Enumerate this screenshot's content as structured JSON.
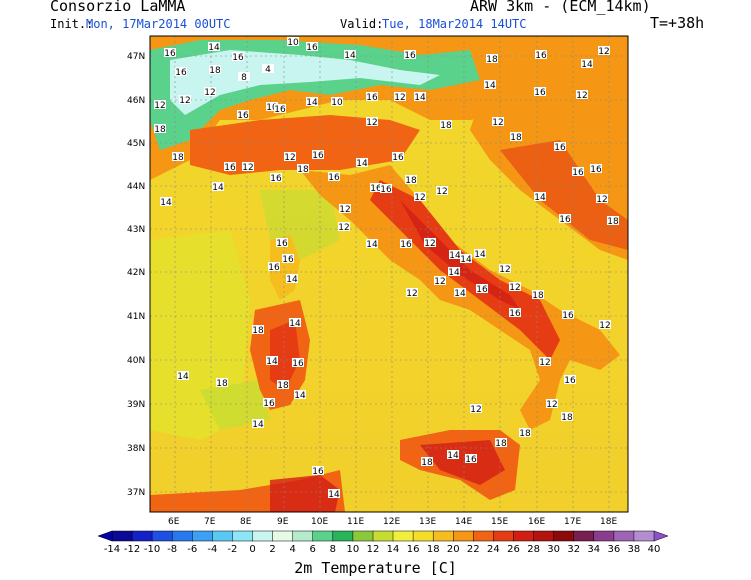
{
  "header": {
    "org": "Consorzio LaMMA",
    "model": "ARW 3km - (ECM_14km)",
    "init_label": "Init.:",
    "init_value": "Mon, 17Mar2014 00UTC",
    "valid_label": "Valid:",
    "valid_value": "Tue, 18Mar2014 14UTC",
    "forecast_step": "T=+38h"
  },
  "axes": {
    "lat_labels": [
      "47N",
      "46N",
      "45N",
      "44N",
      "43N",
      "42N",
      "41N",
      "40N",
      "39N",
      "38N",
      "37N"
    ],
    "lon_labels": [
      "6E",
      "7E",
      "8E",
      "9E",
      "10E",
      "11E",
      "12E",
      "13E",
      "14E",
      "15E",
      "16E",
      "17E",
      "18E"
    ]
  },
  "colorbar": {
    "title": "2m Temperature [C]",
    "labels": [
      "-14",
      "-12",
      "-10",
      "-8",
      "-6",
      "-4",
      "-2",
      "0",
      "2",
      "4",
      "6",
      "8",
      "10",
      "12",
      "14",
      "16",
      "18",
      "20",
      "22",
      "24",
      "26",
      "28",
      "30",
      "32",
      "34",
      "36",
      "38",
      "40"
    ],
    "colors": [
      "#0a0a96",
      "#1420c8",
      "#1e50e6",
      "#2878f0",
      "#3ca0f5",
      "#5ac8f5",
      "#8ce6f5",
      "#c8f5f0",
      "#e6fae6",
      "#b4ebc8",
      "#5ad28c",
      "#28b45a",
      "#8cc83c",
      "#c8dc32",
      "#f0f03c",
      "#f5dc28",
      "#f5be1e",
      "#f59614",
      "#f06414",
      "#e63c14",
      "#d21e14",
      "#b4140f",
      "#8c0a0a",
      "#781e50",
      "#8c3c8c",
      "#a064b4",
      "#b48cd2"
    ]
  },
  "station_values": [
    "14",
    "16",
    "16",
    "12",
    "4",
    "8",
    "4",
    "10",
    "16",
    "14",
    "16",
    "18",
    "16",
    "12",
    "14",
    "12",
    "12",
    "12",
    "10",
    "14",
    "10",
    "16",
    "12",
    "14",
    "14",
    "16",
    "12",
    "18",
    "16",
    "16",
    "12",
    "18",
    "12",
    "18",
    "16",
    "16",
    "16",
    "18",
    "16",
    "12",
    "12",
    "16",
    "16",
    "14",
    "16",
    "18",
    "16",
    "16",
    "14",
    "14",
    "16",
    "18",
    "12",
    "12",
    "12",
    "14",
    "16",
    "12",
    "18",
    "16",
    "16",
    "16",
    "14",
    "12",
    "14",
    "16",
    "12",
    "14",
    "14",
    "12",
    "12",
    "18",
    "16",
    "12",
    "14",
    "14",
    "12",
    "12",
    "14",
    "16",
    "16",
    "18",
    "14",
    "14",
    "16",
    "18",
    "14",
    "18",
    "16",
    "14",
    "14",
    "12",
    "12",
    "16",
    "12",
    "18",
    "18",
    "18",
    "18",
    "14",
    "16",
    "16",
    "14",
    "16",
    "14",
    "16",
    "16",
    "18"
  ]
}
